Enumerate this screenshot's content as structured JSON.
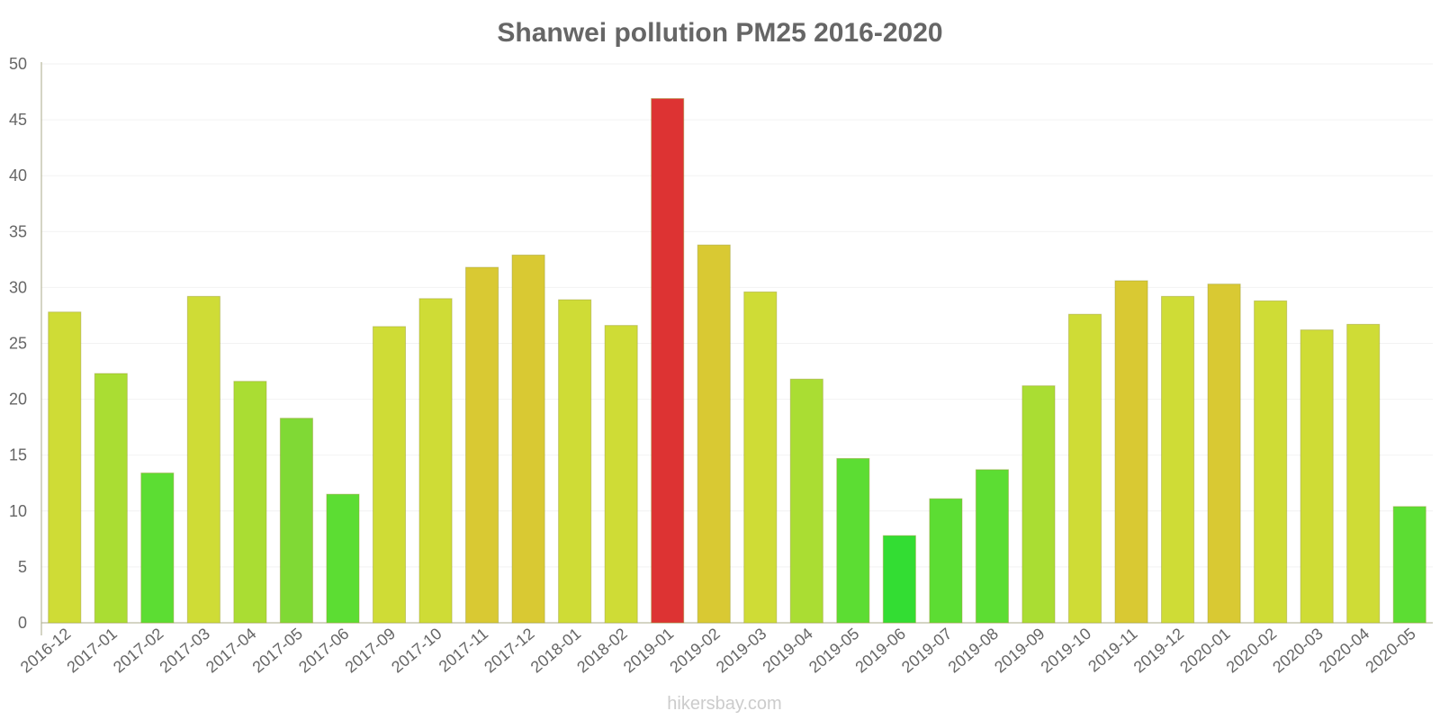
{
  "chart_data": {
    "type": "bar",
    "title": "Shanwei pollution PM25 2016-2020",
    "xlabel": "",
    "ylabel": "",
    "ylim": [
      0,
      50
    ],
    "yticks": [
      "0",
      "5",
      "10",
      "15",
      "20",
      "25",
      "30",
      "35",
      "40",
      "45",
      "50"
    ],
    "grid": true,
    "legend": "none",
    "categories": [
      "2016-12",
      "2017-01",
      "2017-02",
      "2017-03",
      "2017-04",
      "2017-05",
      "2017-06",
      "2017-09",
      "2017-10",
      "2017-11",
      "2017-12",
      "2018-01",
      "2018-02",
      "2019-01",
      "2019-02",
      "2019-03",
      "2019-04",
      "2019-05",
      "2019-06",
      "2019-07",
      "2019-08",
      "2019-09",
      "2019-10",
      "2019-11",
      "2019-12",
      "2020-01",
      "2020-02",
      "2020-03",
      "2020-04",
      "2020-05"
    ],
    "values": [
      27.8,
      22.3,
      13.4,
      29.2,
      21.6,
      18.3,
      11.5,
      26.5,
      29.0,
      31.8,
      32.9,
      28.9,
      26.6,
      46.9,
      33.8,
      29.6,
      21.8,
      14.7,
      7.8,
      11.1,
      13.7,
      21.2,
      27.6,
      30.6,
      29.2,
      30.3,
      28.8,
      26.2,
      26.7,
      10.4
    ],
    "watermark": "hikersbay.com"
  },
  "colors": {
    "level_0_10": "#33dd33",
    "level_10_15": "#5cdd33",
    "level_15_20": "#80d935",
    "level_20_25": "#aadd33",
    "level_25_30": "#cfdc36",
    "level_30_35": "#d9c933",
    "level_35_plus": "#dd3333",
    "stroke_tint": "#999933"
  }
}
